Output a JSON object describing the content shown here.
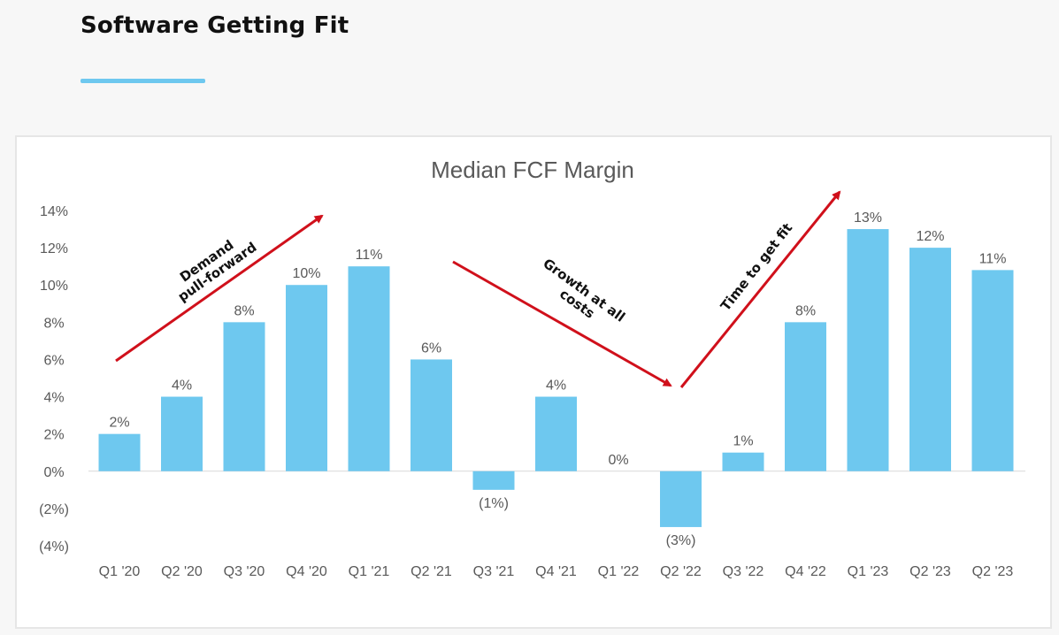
{
  "slide": {
    "title": "Software Getting Fit",
    "accent_color": "#6ec8ef"
  },
  "chart_data": {
    "type": "bar",
    "title": "Median FCF Margin",
    "xlabel": "",
    "ylabel": "",
    "categories": [
      "Q1 '20",
      "Q2 '20",
      "Q3 '20",
      "Q4 '20",
      "Q1 '21",
      "Q2 '21",
      "Q3 '21",
      "Q4 '21",
      "Q1 '22",
      "Q2 '22",
      "Q3 '22",
      "Q4 '22",
      "Q1 '23",
      "Q2 '23",
      "Q2 '23"
    ],
    "values": [
      2,
      4,
      8,
      10,
      11,
      6,
      -1,
      4,
      0,
      -3,
      1,
      8,
      13,
      12,
      10.8
    ],
    "data_labels": [
      "2%",
      "4%",
      "8%",
      "10%",
      "11%",
      "6%",
      "(1%)",
      "4%",
      "0%",
      "(3%)",
      "1%",
      "8%",
      "13%",
      "12%",
      "11%"
    ],
    "ylim": [
      -4,
      14
    ],
    "yticks": [
      14,
      12,
      10,
      8,
      6,
      4,
      2,
      0,
      -2,
      -4
    ],
    "ytick_labels": [
      "14%",
      "12%",
      "10%",
      "8%",
      "6%",
      "4%",
      "2%",
      "0%",
      "(2%)",
      "(4%)"
    ],
    "grid": false,
    "bar_color": "#6ec8ef",
    "arrow_color": "#d0101b",
    "annotations": [
      {
        "lines": [
          "Demand",
          "pull-forward"
        ]
      },
      {
        "lines": [
          "Growth at all",
          "costs"
        ]
      },
      {
        "lines": [
          "Time to get fit"
        ]
      }
    ]
  }
}
